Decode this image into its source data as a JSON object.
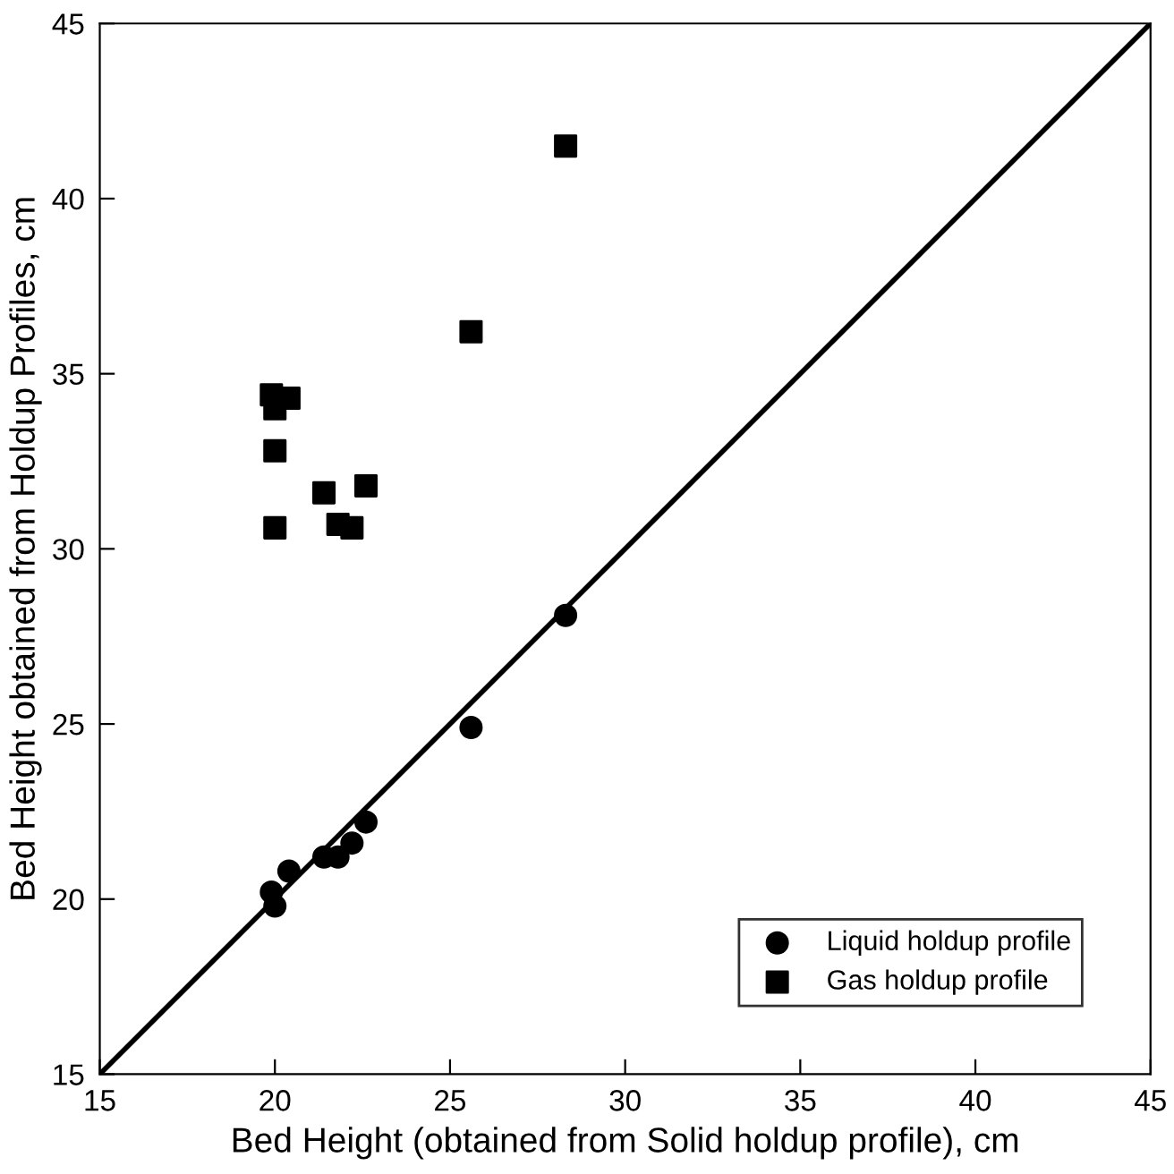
{
  "chart_data": {
    "type": "scatter",
    "xlabel": "Bed Height (obtained from Solid holdup profile), cm",
    "ylabel": "Bed Height obtained from Holdup Profiles, cm",
    "xlim": [
      15,
      45
    ],
    "ylim": [
      15,
      45
    ],
    "xticks": [
      15,
      20,
      25,
      30,
      35,
      40,
      45
    ],
    "yticks": [
      15,
      20,
      25,
      30,
      35,
      40,
      45
    ],
    "grid": false,
    "legend": "bottom right",
    "series": [
      {
        "type": "line",
        "color": "#000000",
        "x": [
          15,
          45
        ],
        "values": [
          15,
          45
        ],
        "marker": "none",
        "line_style": "solid"
      },
      {
        "name": "Liquid holdup profile",
        "color": "#000000",
        "marker": "circle",
        "x": [
          19.9,
          20.0,
          20.4,
          21.4,
          21.8,
          22.2,
          22.6,
          25.6,
          28.3
        ],
        "values": [
          20.2,
          19.8,
          20.8,
          21.2,
          21.2,
          21.6,
          22.2,
          24.9,
          28.1
        ]
      },
      {
        "name": "Gas holdup profile",
        "color": "#000000",
        "marker": "square",
        "x": [
          19.9,
          20.0,
          20.4,
          20.0,
          21.4,
          22.6,
          20.0,
          21.8,
          22.2,
          25.6,
          28.3
        ],
        "values": [
          34.4,
          34.0,
          34.3,
          32.8,
          31.6,
          31.8,
          30.6,
          30.7,
          30.6,
          36.2,
          41.5
        ]
      }
    ]
  }
}
